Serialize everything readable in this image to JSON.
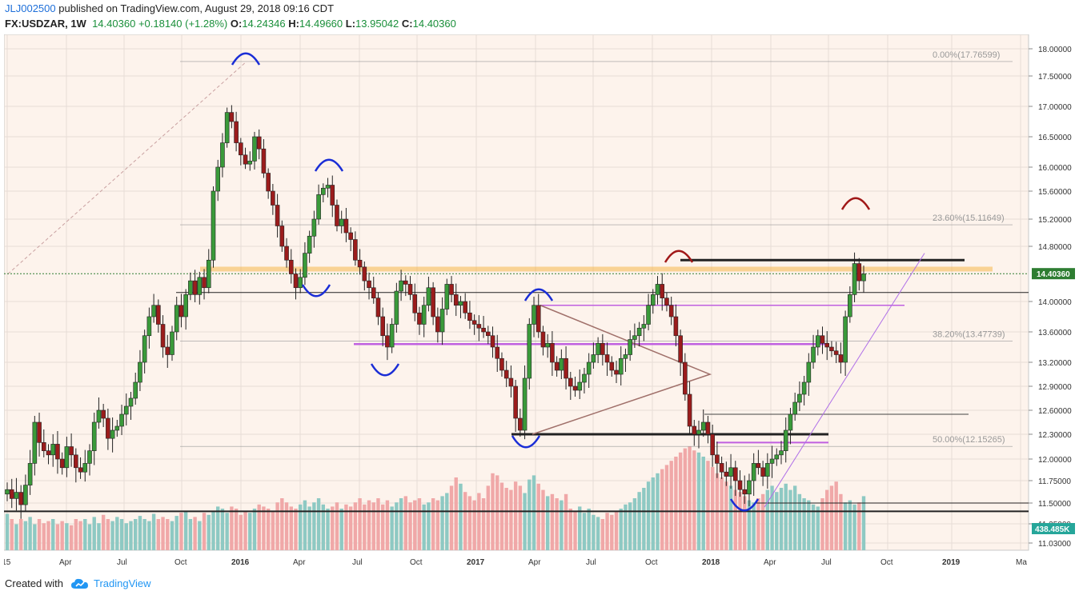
{
  "header": {
    "user": "JLJ002500",
    "published": "published on TradingView.com, August 29, 2018 09:16 CDT",
    "symbol": "FX:USDZAR, 1W",
    "last": "14.40360",
    "change": "+0.18140 (+1.28%)",
    "o_label": "O:",
    "o": "14.24346",
    "h_label": "H:",
    "h": "14.49660",
    "l_label": "L:",
    "l": "13.95042",
    "c_label": "C:",
    "c": "14.40360"
  },
  "footer": {
    "created_with": "Created with",
    "brand": "TradingView"
  },
  "colors": {
    "up": "#3a9a3a",
    "down": "#9b1c1c",
    "vol_up": "#8ec9c3",
    "vol_down": "#f0a8a8",
    "bg": "#fdf3ec",
    "price_label_bg": "#2e7d32",
    "vol_label_bg": "#26a69a",
    "arc_blue": "#1a2dd6",
    "arc_red": "#a01818",
    "fib": "#999999",
    "orange_line": "#f5b74c",
    "purple_line": "#c060e0"
  },
  "chart_data": {
    "type": "candlestick",
    "price_axis_labels": [
      "18.00000",
      "17.50000",
      "17.00000",
      "16.50000",
      "16.00000",
      "15.60000",
      "15.20000",
      "14.80000",
      "14.00000",
      "13.60000",
      "13.20000",
      "12.90000",
      "12.60000",
      "12.30000",
      "12.00000",
      "11.75000",
      "11.50000",
      "11.25000",
      "11.03000"
    ],
    "price_label": "14.40360",
    "volume_label": "438.485K",
    "time_axis_labels": [
      "l15",
      "Apr",
      "Jul",
      "Oct",
      "2016",
      "Apr",
      "Jul",
      "Oct",
      "2017",
      "Apr",
      "Jul",
      "Oct",
      "2018",
      "Apr",
      "Jul",
      "Oct",
      "2019",
      "Ma"
    ],
    "fib_labels": [
      "0.00%(17.76599)",
      "23.60%(15.11649)",
      "38.20%(13.47739)",
      "50.00%(12.15265)"
    ],
    "last_price": 14.4036,
    "shown_range_low": 11.03,
    "shown_range_high": 18.0
  }
}
